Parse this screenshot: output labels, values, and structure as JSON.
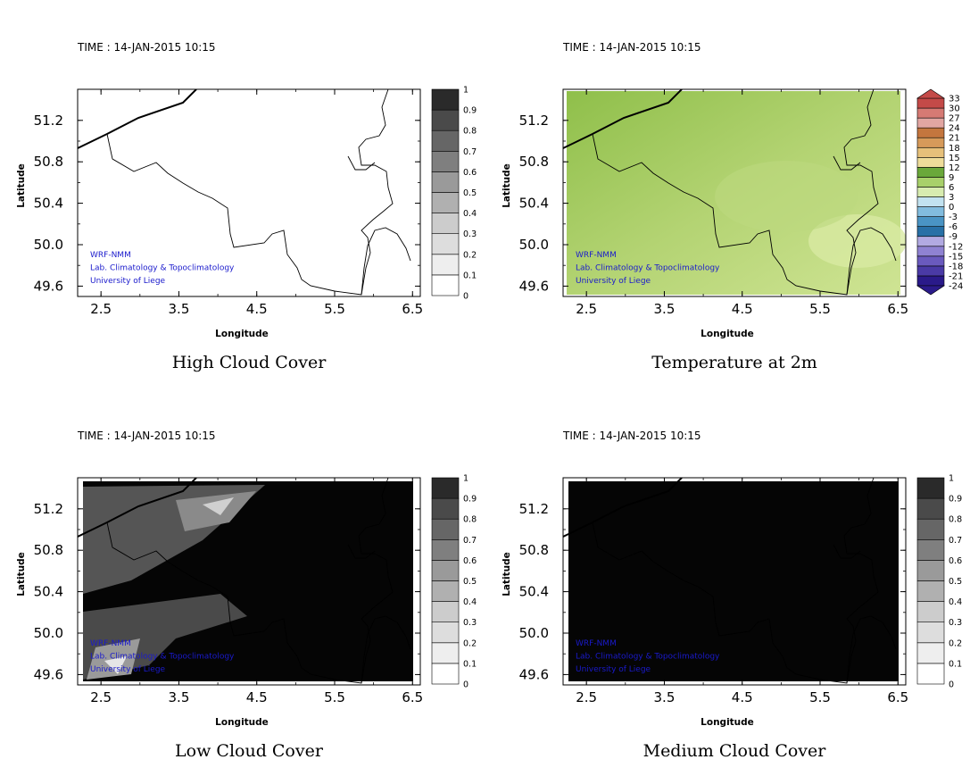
{
  "time_label": "TIME : 14-JAN-2015 10:15",
  "credits": [
    "WRF-NMM",
    "Lab. Climatology & Topoclimatology",
    "University of Liege"
  ],
  "axes": {
    "xlabel": "Longitude",
    "ylabel": "Latitude",
    "xticks": [
      "2.5",
      "3.5",
      "4.5",
      "5.5",
      "6.5"
    ],
    "yticks": [
      "51.2",
      "50.8",
      "50.4",
      "50.0",
      "49.6"
    ]
  },
  "colors": {
    "credit_text": "#1a1acc",
    "border_line": "#000000",
    "temp_fill": "#b5d47a"
  },
  "chart_data": [
    {
      "type": "heatmap",
      "title": "High Cloud Cover",
      "xlabel": "Longitude",
      "ylabel": "Latitude",
      "xlim": [
        2.2,
        6.6
      ],
      "ylim": [
        49.5,
        51.5
      ],
      "colorbar": {
        "labels": [
          "0",
          "0.1",
          "0.2",
          "0.3",
          "0.4",
          "0.5",
          "0.6",
          "0.7",
          "0.8",
          "0.9",
          "1"
        ]
      }
    },
    {
      "type": "heatmap",
      "title": "Temperature at 2m",
      "xlabel": "Longitude",
      "ylabel": "Latitude",
      "xlim": [
        2.2,
        6.6
      ],
      "ylim": [
        49.5,
        51.5
      ],
      "colorbar": {
        "labels": [
          "-24",
          "-21",
          "-18",
          "-15",
          "-12",
          "-9",
          "-6",
          "-3",
          "0",
          "3",
          "6",
          "9",
          "12",
          "15",
          "18",
          "21",
          "24",
          "27",
          "30",
          "33"
        ]
      }
    },
    {
      "type": "heatmap",
      "title": "Low Cloud Cover",
      "xlabel": "Longitude",
      "ylabel": "Latitude",
      "xlim": [
        2.2,
        6.6
      ],
      "ylim": [
        49.5,
        51.5
      ],
      "colorbar": {
        "labels": [
          "0",
          "0.1",
          "0.2",
          "0.3",
          "0.4",
          "0.5",
          "0.6",
          "0.7",
          "0.8",
          "0.9",
          "1"
        ]
      }
    },
    {
      "type": "heatmap",
      "title": "Medium Cloud Cover",
      "xlabel": "Longitude",
      "ylabel": "Latitude",
      "xlim": [
        2.2,
        6.6
      ],
      "ylim": [
        49.5,
        51.5
      ],
      "colorbar": {
        "labels": [
          "0",
          "0.1",
          "0.2",
          "0.3",
          "0.4",
          "0.5",
          "0.6",
          "0.7",
          "0.8",
          "0.9",
          "1"
        ]
      }
    }
  ]
}
